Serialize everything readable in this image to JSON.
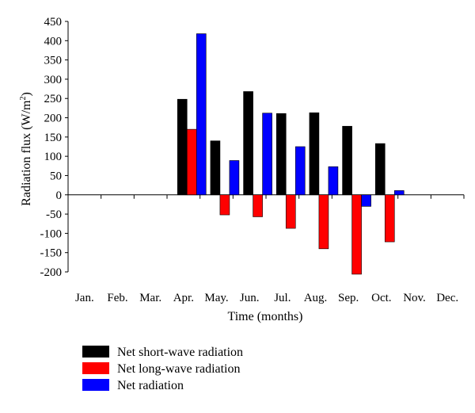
{
  "chart_data": {
    "type": "bar",
    "xlabel": "Time (months)",
    "ylabel_main": "Radiation flux (W/m",
    "ylabel_sup": "2",
    "ylabel_close": ")",
    "ylim": [
      -200,
      450
    ],
    "yticks": [
      450,
      400,
      350,
      300,
      250,
      200,
      150,
      100,
      50,
      0,
      -50,
      -100,
      -150,
      -200
    ],
    "categories": [
      "Jan.",
      "Feb.",
      "Mar.",
      "Apr.",
      "May.",
      "Jun.",
      "Jul.",
      "Aug.",
      "Sep.",
      "Oct.",
      "Nov.",
      "Dec."
    ],
    "series": [
      {
        "name": "Net short-wave radiation",
        "color": "#000000",
        "values": [
          null,
          null,
          null,
          248,
          140,
          268,
          211,
          213,
          178,
          133,
          null,
          null
        ]
      },
      {
        "name": "Net long-wave radiation",
        "color": "#ff0000",
        "values": [
          null,
          null,
          null,
          170,
          -52,
          -57,
          -87,
          -140,
          -206,
          -122,
          null,
          null
        ]
      },
      {
        "name": "Net radiation",
        "color": "#0000ff",
        "values": [
          null,
          null,
          null,
          418,
          89,
          212,
          125,
          73,
          -30,
          11,
          null,
          null
        ]
      }
    ],
    "grid": false,
    "legend_position": "bottom"
  }
}
